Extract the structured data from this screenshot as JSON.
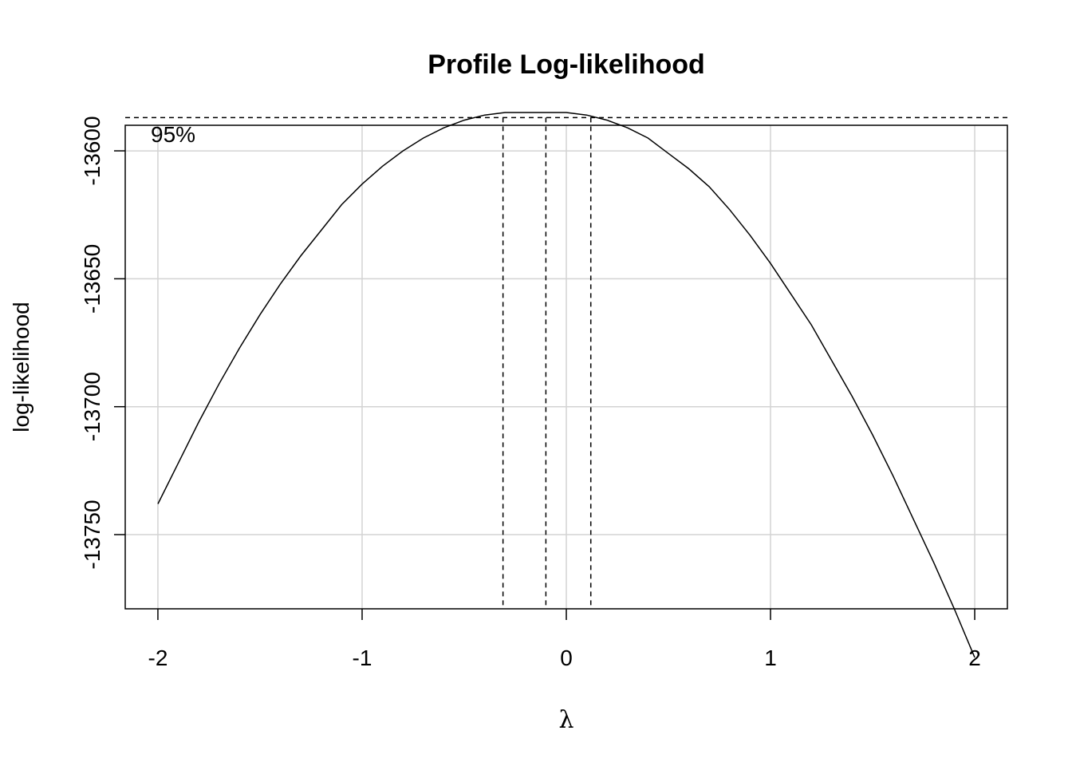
{
  "chart_data": {
    "type": "line",
    "title": "Profile Log-likelihood",
    "xlabel": "λ",
    "ylabel": "log-likelihood",
    "xlim": [
      -2.16,
      2.16
    ],
    "ylim": [
      -13779,
      -13590
    ],
    "xticks": [
      -2,
      -1,
      0,
      1,
      2
    ],
    "yticks": [
      -13600,
      -13650,
      -13700,
      -13750
    ],
    "grid": true,
    "series": [
      {
        "x": [
          -2.0,
          -1.9,
          -1.8,
          -1.7,
          -1.6,
          -1.5,
          -1.4,
          -1.3,
          -1.2,
          -1.1,
          -1.0,
          -0.9,
          -0.8,
          -0.7,
          -0.6,
          -0.5,
          -0.4,
          -0.3,
          -0.2,
          -0.1,
          0.0,
          0.1,
          0.2,
          0.3,
          0.4,
          0.5,
          0.6,
          0.7,
          0.8,
          0.9,
          1.0,
          1.1,
          1.2,
          1.3,
          1.4,
          1.5,
          1.6,
          1.7,
          1.8,
          1.9,
          2.0
        ],
        "y": [
          -13738,
          -13722,
          -13706,
          -13691,
          -13677,
          -13664,
          -13652,
          -13641,
          -13631,
          -13621,
          -13613,
          -13606,
          -13600,
          -13595,
          -13591,
          -13588,
          -13586,
          -13585,
          -13585,
          -13585,
          -13585,
          -13586,
          -13588,
          -13591,
          -13595,
          -13601,
          -13607,
          -13614,
          -13623,
          -13633,
          -13644,
          -13656,
          -13668,
          -13682,
          -13696,
          -13711,
          -13727,
          -13744,
          -13761,
          -13779,
          -13798
        ]
      }
    ],
    "ci_line": -13587,
    "ci_label": "95%",
    "ci_lambda": [
      -0.31,
      -0.1,
      0.12
    ]
  }
}
